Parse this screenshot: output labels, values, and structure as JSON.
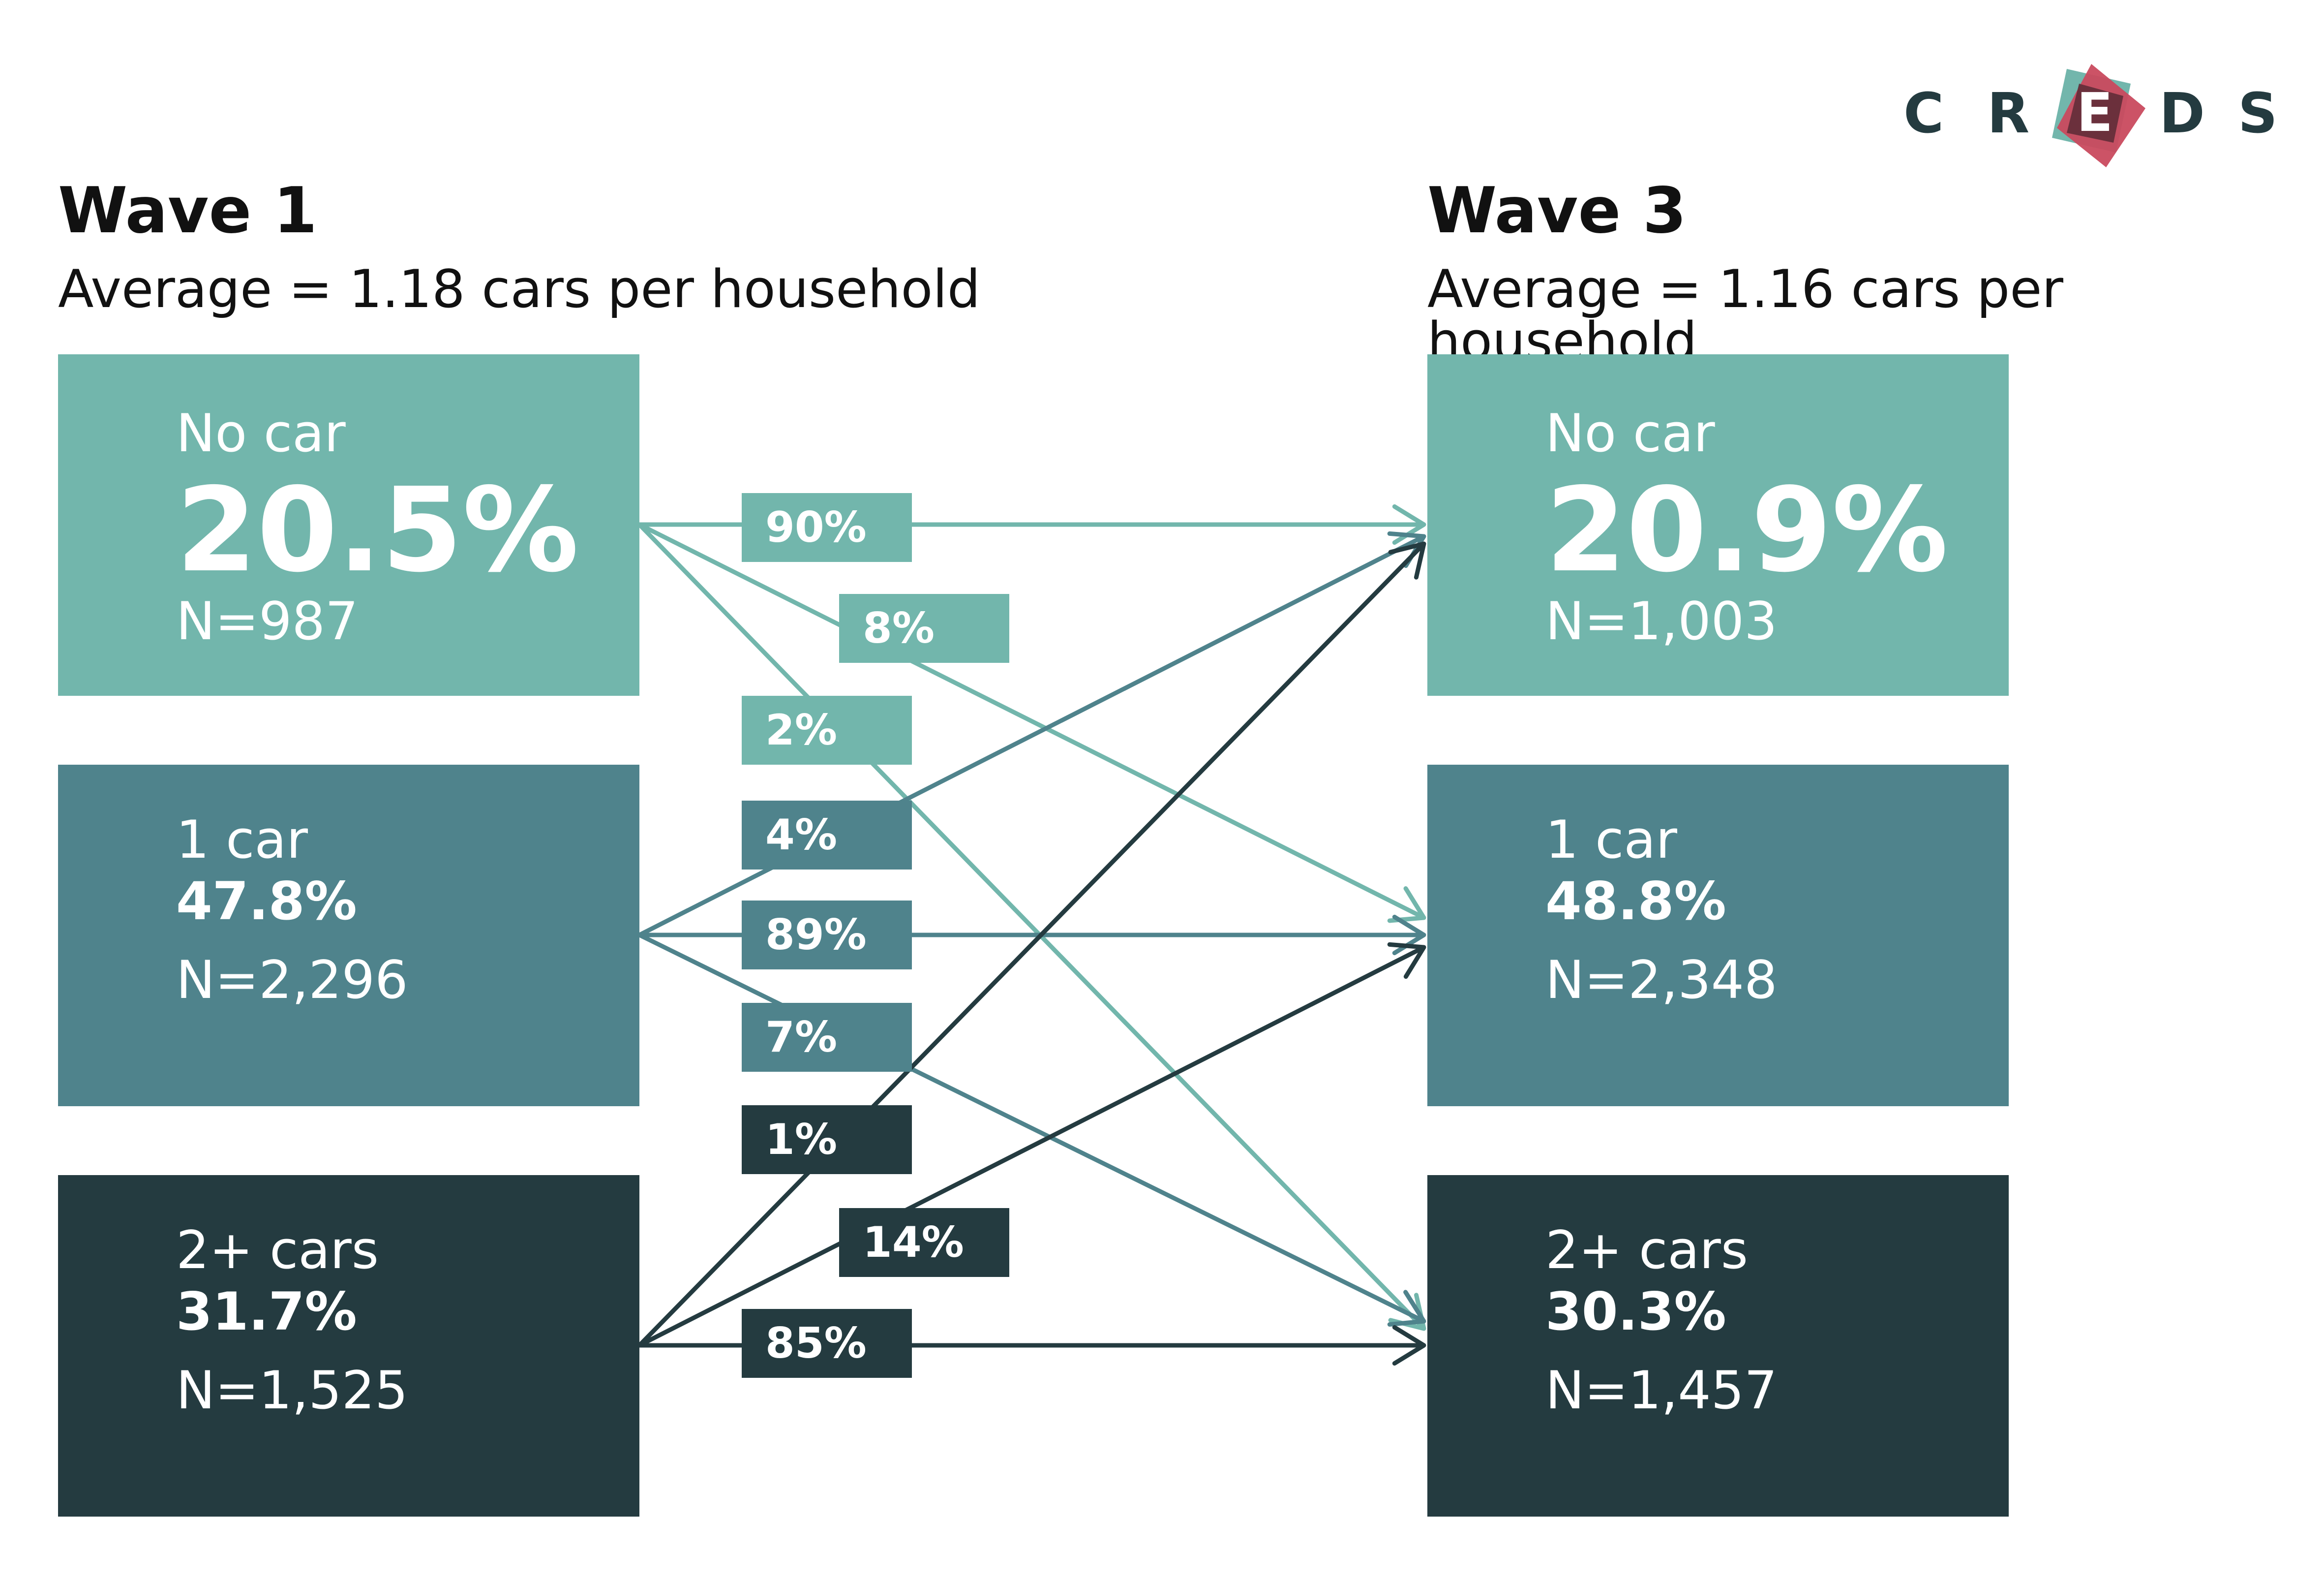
{
  "logo": {
    "letters": [
      "C",
      "R",
      "E",
      "D",
      "S"
    ],
    "colors": {
      "mark_teal": "#72b6ac",
      "mark_red": "#c94a5e",
      "mark_dark": "#243b40"
    }
  },
  "colors": {
    "no_car": "#72b6ac",
    "one_car": "#4f838c",
    "two_plus": "#243b40"
  },
  "wave1": {
    "title": "Wave 1",
    "subtitle": "Average = 1.18 cars per household",
    "boxes": [
      {
        "category": "No car",
        "percent": "20.5%",
        "n": "N=987"
      },
      {
        "category": "1 car",
        "percent": "47.8%",
        "n": "N=2,296"
      },
      {
        "category": "2+ cars",
        "percent": "31.7%",
        "n": "N=1,525"
      }
    ]
  },
  "wave3": {
    "title": "Wave 3",
    "subtitle": "Average = 1.16 cars per household",
    "boxes": [
      {
        "category": "No car",
        "percent": "20.9%",
        "n": "N=1,003"
      },
      {
        "category": "1 car",
        "percent": "48.8%",
        "n": "N=2,348"
      },
      {
        "category": "2+ cars",
        "percent": "30.3%",
        "n": "N=1,457"
      }
    ]
  },
  "flows": [
    {
      "from": 0,
      "to": 0,
      "label": "90%",
      "color": "#72b6ac"
    },
    {
      "from": 0,
      "to": 1,
      "label": "8%",
      "color": "#72b6ac"
    },
    {
      "from": 0,
      "to": 2,
      "label": "2%",
      "color": "#72b6ac"
    },
    {
      "from": 1,
      "to": 0,
      "label": "4%",
      "color": "#4f838c"
    },
    {
      "from": 1,
      "to": 1,
      "label": "89%",
      "color": "#4f838c"
    },
    {
      "from": 1,
      "to": 2,
      "label": "7%",
      "color": "#4f838c"
    },
    {
      "from": 2,
      "to": 0,
      "label": "1%",
      "color": "#243b40"
    },
    {
      "from": 2,
      "to": 1,
      "label": "14%",
      "color": "#243b40"
    },
    {
      "from": 2,
      "to": 2,
      "label": "85%",
      "color": "#243b40"
    }
  ]
}
